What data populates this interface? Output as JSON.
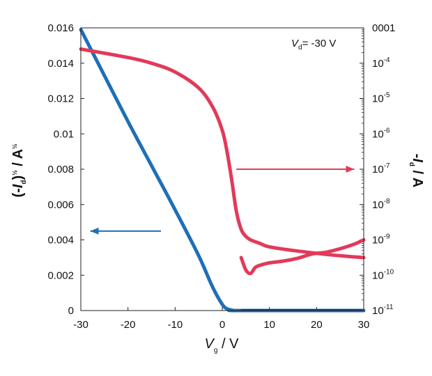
{
  "chart_data": {
    "type": "line",
    "annotation": {
      "label": "V",
      "sub": "d",
      "rest": "= -30 V"
    },
    "xlabel": {
      "main": "V",
      "sub": "g",
      "rest": " / V"
    },
    "ylabel_left": {
      "open": "(-",
      "main": "I",
      "sub": "d",
      "close": ")",
      "sup": "½",
      "rest": " / A",
      "sup2": "½"
    },
    "ylabel_right": {
      "prefix": "-",
      "main": "I",
      "sub": "d",
      "rest": " / A"
    },
    "xlim": [
      -30,
      30
    ],
    "ylim_left": [
      0,
      0.016
    ],
    "ylim_right_log10": [
      -11,
      -3
    ],
    "x_ticks": [
      "-30",
      "-20",
      "-10",
      "0",
      "10",
      "20",
      "30"
    ],
    "x_tick_values": [
      -30,
      -20,
      -10,
      0,
      10,
      20,
      30
    ],
    "y_left_ticks": [
      "0",
      "0.002",
      "0.004",
      "0.006",
      "0.008",
      "0.01",
      "0.012",
      "0.014",
      "0.016"
    ],
    "y_left_tick_values": [
      0,
      0.002,
      0.004,
      0.006,
      0.008,
      0.01,
      0.012,
      0.014,
      0.016
    ],
    "y_right_ticks": [
      {
        "base": "10",
        "exp": "-11"
      },
      {
        "base": "10",
        "exp": "-10"
      },
      {
        "base": "10",
        "exp": "-9"
      },
      {
        "base": "10",
        "exp": "-8"
      },
      {
        "base": "10",
        "exp": "-7"
      },
      {
        "base": "10",
        "exp": "-6"
      },
      {
        "base": "10",
        "exp": "-5"
      },
      {
        "base": "10",
        "exp": "-4"
      },
      {
        "base": "0001",
        "exp": ""
      }
    ],
    "y_right_tick_exponents": [
      -11,
      -10,
      -9,
      -8,
      -7,
      -6,
      -5,
      -4,
      -3
    ],
    "series": [
      {
        "axis": "left",
        "color": "#1f6fb7",
        "x": [
          -30,
          -25,
          -20,
          -15,
          -10,
          -5,
          -2,
          0,
          1,
          2,
          4,
          30
        ],
        "y": [
          0.0159,
          0.0133,
          0.0107,
          0.0082,
          0.0057,
          0.0031,
          0.0013,
          0.00035,
          0.0001,
          3e-05,
          0.0,
          0.0
        ]
      },
      {
        "axis": "right",
        "color": "#e23a5a",
        "sweep": "forward",
        "x": [
          -30,
          -20,
          -15,
          -10,
          -5,
          -2,
          0,
          1,
          2,
          3,
          4,
          5,
          6,
          8,
          10,
          15,
          20,
          25,
          30
        ],
        "log10_y": [
          -3.6,
          -3.84,
          -4.0,
          -4.25,
          -4.7,
          -5.25,
          -5.9,
          -6.5,
          -7.3,
          -8.2,
          -8.7,
          -8.9,
          -9.0,
          -9.1,
          -9.2,
          -9.3,
          -9.38,
          -9.45,
          -9.5
        ]
      },
      {
        "axis": "right",
        "color": "#e23a5a",
        "sweep": "reverse",
        "x": [
          4,
          5,
          6,
          7,
          8,
          10,
          13,
          16,
          19,
          22,
          25,
          28,
          30
        ],
        "log10_y": [
          -9.5,
          -9.85,
          -9.95,
          -9.78,
          -9.72,
          -9.65,
          -9.6,
          -9.52,
          -9.4,
          -9.35,
          -9.25,
          -9.12,
          -9.0
        ]
      }
    ],
    "arrows": [
      {
        "direction": "left",
        "color": "#1f6fb7",
        "from_x": -13,
        "to_x": -28,
        "level": 0.0045
      },
      {
        "direction": "right",
        "color": "#e23a5a",
        "from_x": 3,
        "to_x": 28,
        "level": 0.008
      }
    ]
  }
}
